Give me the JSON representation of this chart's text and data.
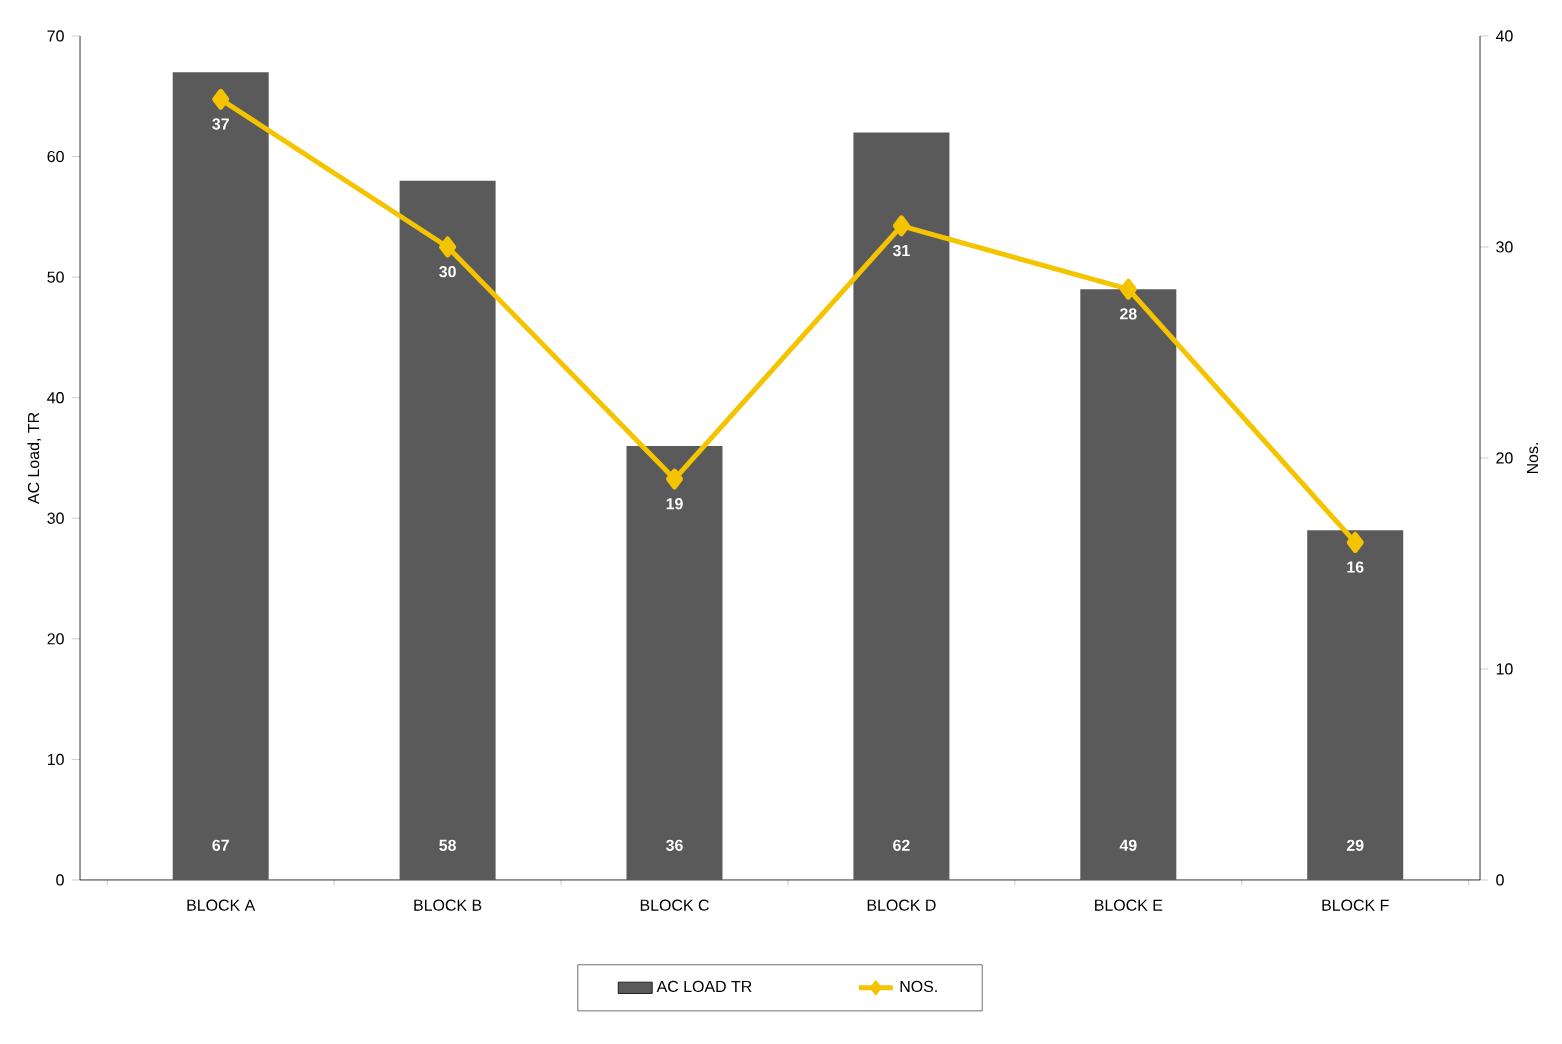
{
  "chart_data": {
    "type": "bar",
    "ylabel": "AC Load, TR",
    "y2label": "Nos.",
    "categories": [
      "BLOCK A",
      "BLOCK B",
      "BLOCK C",
      "BLOCK D",
      "BLOCK E",
      "BLOCK F"
    ],
    "series": [
      {
        "name": "AC LOAD TR",
        "color": "#5a5a5a",
        "values": [
          67,
          58,
          36,
          62,
          49,
          29
        ]
      },
      {
        "name": "NOS.",
        "type": "line",
        "axis": "y2",
        "color": "#f5c400",
        "marker": "diamond",
        "values": [
          37,
          30,
          19,
          31,
          28,
          16
        ]
      }
    ],
    "ylim": [
      0,
      70
    ],
    "yticks": [
      0,
      10,
      20,
      30,
      40,
      50,
      60,
      70
    ],
    "y2lim": [
      0,
      40
    ],
    "y2ticks": [
      0,
      10,
      20,
      30,
      40
    ],
    "data_labels": true,
    "legend": "bottom",
    "grid": false
  }
}
